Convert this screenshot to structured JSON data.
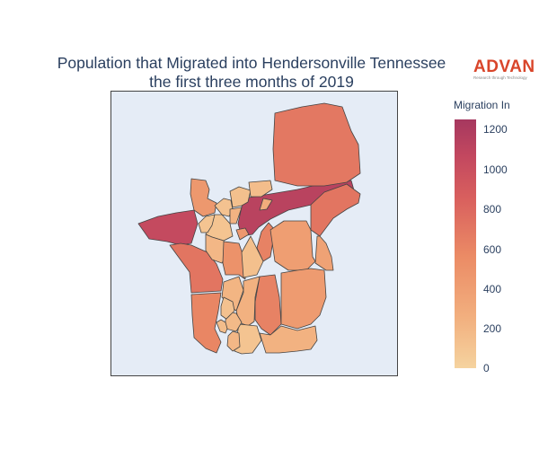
{
  "title_line1": "Population that Migrated into Hendersonville Tennessee",
  "title_line2": "the first three months of 2019",
  "logo": {
    "word": "ADVAN",
    "tagline": "Research through Technology"
  },
  "colorbar": {
    "title": "Migration In",
    "ticks": [
      "1200",
      "1000",
      "800",
      "600",
      "400",
      "200",
      "0"
    ],
    "colorscale": [
      "#f5d39f",
      "#f2b07f",
      "#eb8b65",
      "#d9605e",
      "#c3485f",
      "#a6385f"
    ],
    "range": [
      0,
      1270
    ]
  },
  "map_data": {
    "background": "#e5ecf6",
    "region_values": [
      1000,
      420,
      1100,
      620,
      640,
      640,
      540,
      110,
      200,
      120,
      140,
      160,
      230,
      460,
      560,
      560,
      380,
      400,
      350,
      240,
      140,
      250,
      110,
      220,
      130,
      180,
      160,
      200,
      110,
      280,
      420
    ]
  }
}
